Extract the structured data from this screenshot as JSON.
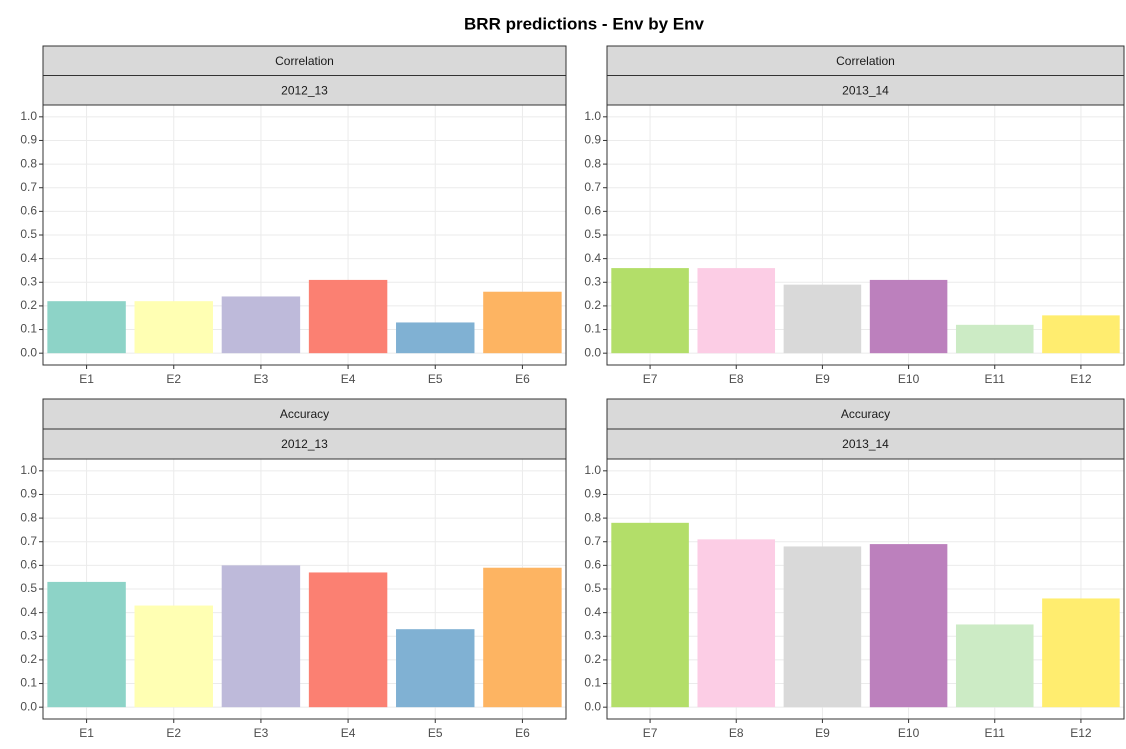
{
  "title": "BRR predictions - Env by Env",
  "chart_data": [
    {
      "type": "bar",
      "strips": [
        "Correlation",
        "2012_13"
      ],
      "categories": [
        "E1",
        "E2",
        "E3",
        "E4",
        "E5",
        "E6"
      ],
      "values": [
        0.22,
        0.22,
        0.24,
        0.31,
        0.13,
        0.26
      ],
      "colors": [
        "#8dd3c7",
        "#ffffb3",
        "#bebada",
        "#fb8072",
        "#80b1d3",
        "#fdb462"
      ],
      "ylim": [
        -0.05,
        1.05
      ],
      "yticks": [
        {
          "value": 0,
          "label": "0.0"
        },
        0.1,
        0.2,
        0.3,
        0.4,
        0.5,
        0.6,
        0.7,
        0.8,
        0.9,
        {
          "value": 1,
          "label": "1.0"
        }
      ],
      "grid": true
    },
    {
      "type": "bar",
      "strips": [
        "Correlation",
        "2013_14"
      ],
      "categories": [
        "E7",
        "E8",
        "E9",
        "E10",
        "E11",
        "E12"
      ],
      "values": [
        0.36,
        0.36,
        0.29,
        0.31,
        0.12,
        0.16
      ],
      "colors": [
        "#b3de69",
        "#fccde5",
        "#d9d9d9",
        "#bc80bd",
        "#ccebc5",
        "#ffed6f"
      ],
      "ylim": [
        -0.05,
        1.05
      ],
      "yticks": [
        {
          "value": 0,
          "label": "0.0"
        },
        0.1,
        0.2,
        0.3,
        0.4,
        0.5,
        0.6,
        0.7,
        0.8,
        0.9,
        {
          "value": 1,
          "label": "1.0"
        }
      ],
      "grid": true
    },
    {
      "type": "bar",
      "strips": [
        "Accuracy",
        "2012_13"
      ],
      "categories": [
        "E1",
        "E2",
        "E3",
        "E4",
        "E5",
        "E6"
      ],
      "values": [
        0.53,
        0.43,
        0.6,
        0.57,
        0.33,
        0.59
      ],
      "colors": [
        "#8dd3c7",
        "#ffffb3",
        "#bebada",
        "#fb8072",
        "#80b1d3",
        "#fdb462"
      ],
      "ylim": [
        -0.05,
        1.05
      ],
      "yticks": [
        {
          "value": 0,
          "label": "0.0"
        },
        0.1,
        0.2,
        0.3,
        0.4,
        0.5,
        0.6,
        0.7,
        0.8,
        0.9,
        {
          "value": 1,
          "label": "1.0"
        }
      ],
      "grid": true
    },
    {
      "type": "bar",
      "strips": [
        "Accuracy",
        "2013_14"
      ],
      "categories": [
        "E7",
        "E8",
        "E9",
        "E10",
        "E11",
        "E12"
      ],
      "values": [
        0.78,
        0.71,
        0.68,
        0.69,
        0.35,
        0.46
      ],
      "colors": [
        "#b3de69",
        "#fccde5",
        "#d9d9d9",
        "#bc80bd",
        "#ccebc5",
        "#ffed6f"
      ],
      "ylim": [
        -0.05,
        1.05
      ],
      "yticks": [
        {
          "value": 0,
          "label": "0.0"
        },
        0.1,
        0.2,
        0.3,
        0.4,
        0.5,
        0.6,
        0.7,
        0.8,
        0.9,
        {
          "value": 1,
          "label": "1.0"
        }
      ],
      "grid": true
    }
  ]
}
